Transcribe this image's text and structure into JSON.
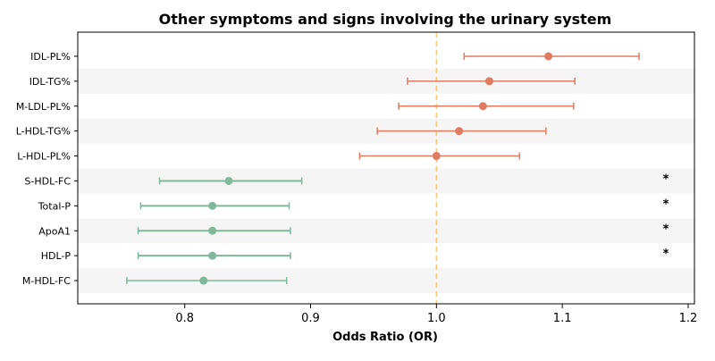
{
  "chart_data": {
    "type": "forest",
    "title": "Other symptoms and signs involving the urinary system",
    "xlabel": "Odds Ratio (OR)",
    "xlim": [
      0.715,
      1.205
    ],
    "x_ticks": [
      0.8,
      0.9,
      1.0,
      1.1,
      1.2
    ],
    "x_tick_labels": [
      "0.8",
      "0.9",
      "1.0",
      "1.1",
      "1.2"
    ],
    "reference_line": 1.0,
    "significance_marker": "*",
    "colors": {
      "positive": "#e07b62",
      "negative": "#7fb89a",
      "reference": "#f5c77a",
      "band": "#f5f5f5"
    },
    "rows": [
      {
        "label": "IDL-PL%",
        "or": 1.089,
        "lower": 1.022,
        "upper": 1.161,
        "significant": false,
        "group": "positive"
      },
      {
        "label": "IDL-TG%",
        "or": 1.042,
        "lower": 0.977,
        "upper": 1.11,
        "significant": false,
        "group": "positive"
      },
      {
        "label": "M-LDL-PL%",
        "or": 1.037,
        "lower": 0.97,
        "upper": 1.109,
        "significant": false,
        "group": "positive"
      },
      {
        "label": "L-HDL-TG%",
        "or": 1.018,
        "lower": 0.953,
        "upper": 1.087,
        "significant": false,
        "group": "positive"
      },
      {
        "label": "L-HDL-PL%",
        "or": 1.0,
        "lower": 0.939,
        "upper": 1.066,
        "significant": false,
        "group": "positive"
      },
      {
        "label": "S-HDL-FC",
        "or": 0.835,
        "lower": 0.78,
        "upper": 0.893,
        "significant": true,
        "group": "negative"
      },
      {
        "label": "Total-P",
        "or": 0.822,
        "lower": 0.765,
        "upper": 0.883,
        "significant": true,
        "group": "negative"
      },
      {
        "label": "ApoA1",
        "or": 0.822,
        "lower": 0.763,
        "upper": 0.884,
        "significant": true,
        "group": "negative"
      },
      {
        "label": "HDL-P",
        "or": 0.822,
        "lower": 0.763,
        "upper": 0.884,
        "significant": true,
        "group": "negative"
      },
      {
        "label": "M-HDL-FC",
        "or": 0.815,
        "lower": 0.754,
        "upper": 0.881,
        "significant": false,
        "group": "negative"
      }
    ]
  }
}
